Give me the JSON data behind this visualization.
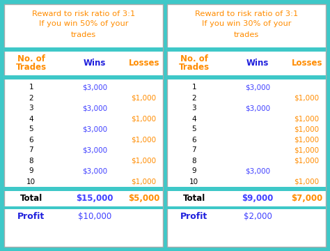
{
  "bg_color": "#3EC8C8",
  "box_color": "#FFFFFF",
  "title_color": "#FF8C00",
  "header_orange": "#FF8C00",
  "header_blue": "#2020DD",
  "wins_color": "#4040FF",
  "losses_color": "#FF8C00",
  "black": "#000000",
  "profit_blue": "#2020DD",
  "left_title1": "Reward to risk ratio of 3:1",
  "left_title2": "If you win 50% of your",
  "left_title3": "trades",
  "right_title1": "Reward to risk ratio of 3:1",
  "right_title2": "If you win 30% of your",
  "right_title3": "trades",
  "left_trades": [
    1,
    2,
    3,
    4,
    5,
    6,
    7,
    8,
    9,
    10
  ],
  "left_wins": [
    "$3,000",
    "",
    "$3,000",
    "",
    "$3,000",
    "",
    "$3,000",
    "",
    "$3,000",
    ""
  ],
  "left_losses": [
    "",
    "$1,000",
    "",
    "$1,000",
    "",
    "$1,000",
    "",
    "$1,000",
    "",
    "$1,000"
  ],
  "left_total_wins": "$15,000",
  "left_total_losses": "$5,000",
  "left_profit": "$10,000",
  "right_trades": [
    1,
    2,
    3,
    4,
    5,
    6,
    7,
    8,
    9,
    10
  ],
  "right_wins": [
    "$3,000",
    "",
    "$3,000",
    "",
    "",
    "",
    "",
    "",
    "$3,000",
    ""
  ],
  "right_losses": [
    "",
    "$1,000",
    "",
    "$1,000",
    "$1,000",
    "$1,000",
    "$1,000",
    "$1,000",
    "",
    "$1,000"
  ],
  "right_total_wins": "$9,000",
  "right_total_losses": "$7,000",
  "right_profit": "$2,000",
  "fig_w": 4.74,
  "fig_h": 3.6,
  "dpi": 100
}
